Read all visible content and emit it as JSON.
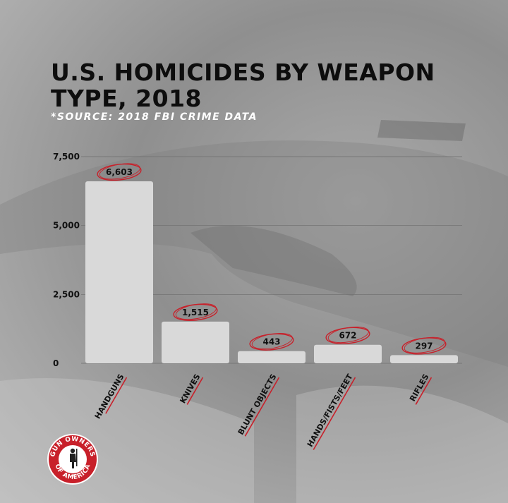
{
  "chart_data": {
    "type": "bar",
    "title": "U.S. HOMICIDES BY WEAPON TYPE, 2018",
    "subtitle": "*SOURCE: 2018 FBI CRIME DATA",
    "categories": [
      "HANDGUNS",
      "KNIVES",
      "BLUNT OBJECTS",
      "HANDS/FISTS/FEET",
      "RIFLES"
    ],
    "values": [
      6603,
      1515,
      443,
      672,
      297
    ],
    "value_labels": [
      "6,603",
      "1,515",
      "443",
      "672",
      "297"
    ],
    "y_ticks": [
      0,
      2500,
      5000,
      7500
    ],
    "y_tick_labels": [
      "0",
      "2,500",
      "5,000",
      "7,500"
    ],
    "ylim": [
      0,
      7500
    ],
    "grid": true,
    "bar_color": "#d9d9d9",
    "circle_color": "#c8202a",
    "underline_color": "#c8202a"
  },
  "logo": {
    "top_text": "GUN OWNERS",
    "bottom_text": "OF AMERICA",
    "ring_color": "#c8202a"
  }
}
